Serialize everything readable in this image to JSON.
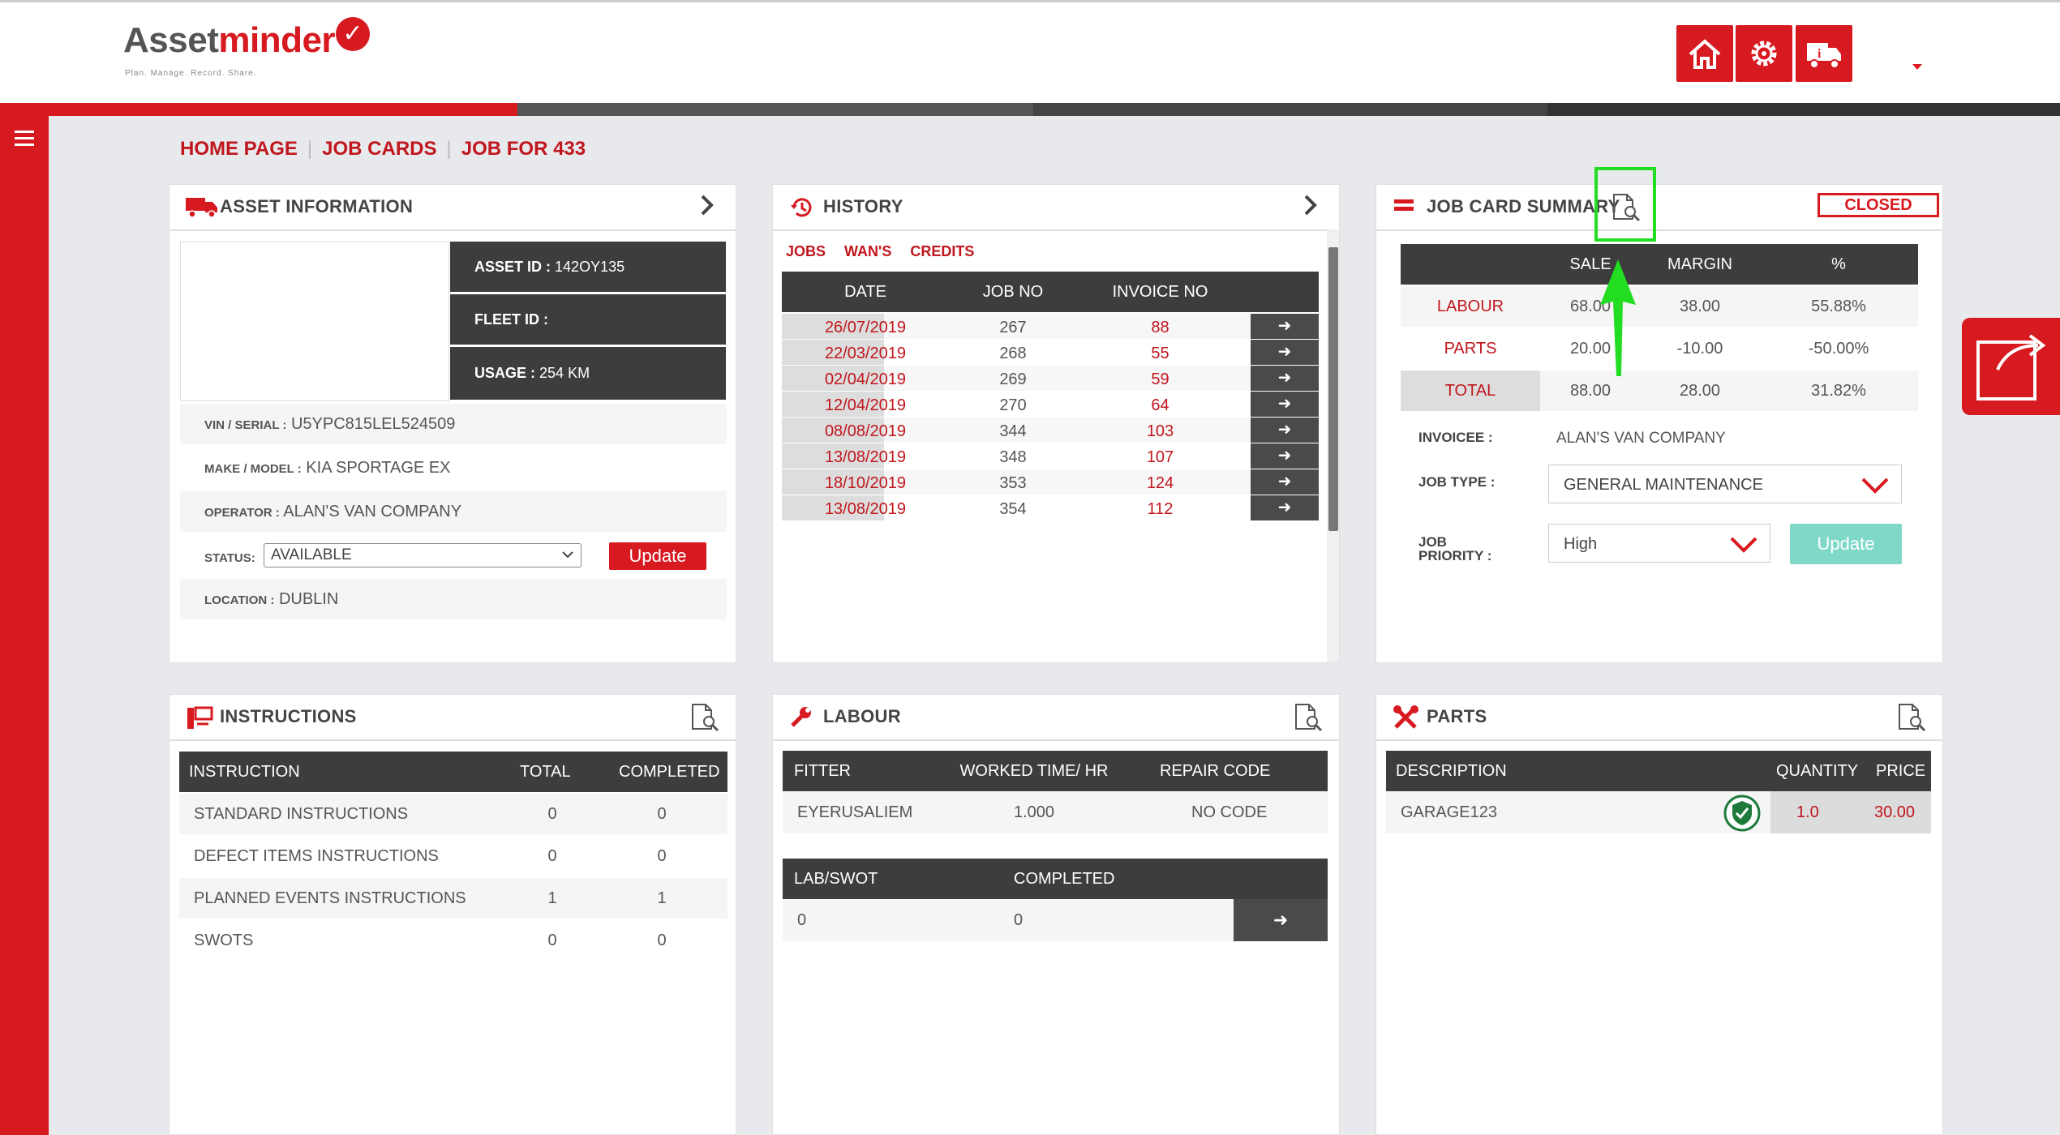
{
  "brand": {
    "name_a": "Asset",
    "name_b": "minder",
    "tagline": "Plan. Manage. Record. Share."
  },
  "colors": {
    "accent": "#d71920",
    "dark": "#3d3d3d",
    "teal": "#7fd8c8",
    "highlight": "#22dd22"
  },
  "toolbar": {
    "icons": [
      "home-icon",
      "settings-gear-icon",
      "van-info-icon"
    ]
  },
  "breadcrumb": {
    "home": "HOME PAGE",
    "job_cards": "JOB CARDS",
    "job": "JOB FOR 433"
  },
  "asset_info": {
    "title": "ASSET INFORMATION",
    "asset_id_label": "ASSET ID :",
    "asset_id": "142OY135",
    "fleet_id_label": "FLEET ID :",
    "fleet_id": "",
    "usage_label": "USAGE :",
    "usage": "254 KM",
    "vin_label": "VIN / SERIAL :",
    "vin": "U5YPC815LEL524509",
    "make_label": "MAKE / MODEL :",
    "make": "KIA SPORTAGE EX",
    "operator_label": "OPERATOR :",
    "operator": "ALAN'S VAN COMPANY",
    "status_label": "STATUS:",
    "status": "AVAILABLE",
    "update_label": "Update",
    "location_label": "LOCATION :",
    "location": "DUBLIN"
  },
  "history": {
    "title": "HISTORY",
    "tabs": [
      "JOBS",
      "WAN'S",
      "CREDITS"
    ],
    "columns": [
      "DATE",
      "JOB NO",
      "INVOICE NO"
    ],
    "rows": [
      {
        "date": "26/07/2019",
        "job": "267",
        "invoice": "88"
      },
      {
        "date": "22/03/2019",
        "job": "268",
        "invoice": "55"
      },
      {
        "date": "02/04/2019",
        "job": "269",
        "invoice": "59"
      },
      {
        "date": "12/04/2019",
        "job": "270",
        "invoice": "64"
      },
      {
        "date": "08/08/2019",
        "job": "344",
        "invoice": "103"
      },
      {
        "date": "13/08/2019",
        "job": "348",
        "invoice": "107"
      },
      {
        "date": "18/10/2019",
        "job": "353",
        "invoice": "124"
      },
      {
        "date": "13/08/2019",
        "job": "354",
        "invoice": "112"
      }
    ]
  },
  "summary": {
    "title": "JOB CARD SUMMARY",
    "status_badge": "CLOSED",
    "columns": [
      "SALE",
      "MARGIN",
      "%"
    ],
    "rows": [
      {
        "label": "LABOUR",
        "sale": "68.00",
        "margin": "38.00",
        "pct": "55.88%"
      },
      {
        "label": "PARTS",
        "sale": "20.00",
        "margin": "-10.00",
        "pct": "-50.00%"
      },
      {
        "label": "TOTAL",
        "sale": "88.00",
        "margin": "28.00",
        "pct": "31.82%"
      }
    ],
    "invoicee_label": "INVOICEE :",
    "invoicee": "ALAN'S VAN COMPANY",
    "job_type_label": "JOB TYPE :",
    "job_type": "GENERAL MAINTENANCE",
    "priority_label_1": "JOB",
    "priority_label_2": "PRIORITY :",
    "priority": "High",
    "update_label": "Update"
  },
  "instructions": {
    "title": "INSTRUCTIONS",
    "columns": [
      "INSTRUCTION",
      "TOTAL",
      "COMPLETED"
    ],
    "rows": [
      {
        "name": "STANDARD INSTRUCTIONS",
        "total": "0",
        "completed": "0"
      },
      {
        "name": "DEFECT ITEMS INSTRUCTIONS",
        "total": "0",
        "completed": "0"
      },
      {
        "name": "PLANNED EVENTS INSTRUCTIONS",
        "total": "1",
        "completed": "1"
      },
      {
        "name": "SWOTS",
        "total": "0",
        "completed": "0"
      }
    ]
  },
  "labour": {
    "title": "LABOUR",
    "columns": [
      "FITTER",
      "WORKED TIME/ HR",
      "REPAIR CODE"
    ],
    "rows": [
      {
        "fitter": "EYERUSALIEM",
        "time": "1.000",
        "code": "NO CODE"
      }
    ],
    "swot_columns": [
      "LAB/SWOT",
      "COMPLETED"
    ],
    "swot_rows": [
      {
        "lab": "0",
        "completed": "0"
      }
    ]
  },
  "parts": {
    "title": "PARTS",
    "columns": [
      "DESCRIPTION",
      "QUANTITY",
      "PRICE"
    ],
    "rows": [
      {
        "desc": "GARAGE123",
        "qty": "1.0",
        "price": "30.00"
      }
    ]
  }
}
